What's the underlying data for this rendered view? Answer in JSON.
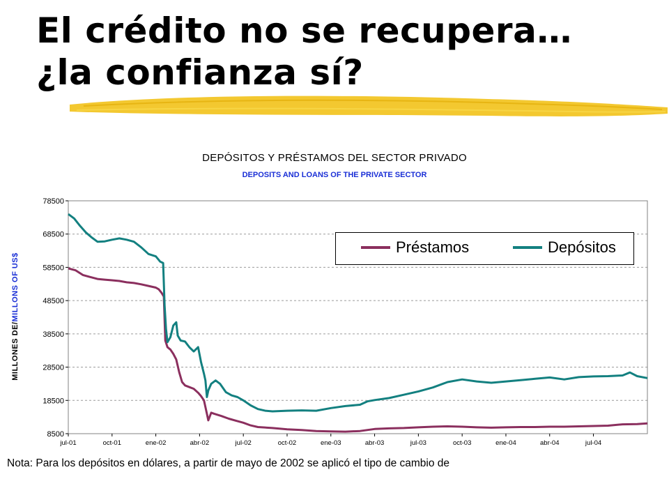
{
  "slide": {
    "title_line1": "El crédito no se recupera…",
    "title_line2": "¿la confianza sí?"
  },
  "note": "Nota: Para los depósitos en dólares, a partir de mayo de 2002 se aplicó el tipo de cambio de",
  "colors": {
    "prestamos": "#8b2f5e",
    "depositos": "#138080",
    "subtitle": "#1a2fd6",
    "stroke": "#f2c21a"
  },
  "chart_data": {
    "type": "line",
    "title": "DEPÓSITOS Y PRÉSTAMOS DEL SECTOR PRIVADO",
    "subtitle": "DEPOSITS AND LOANS OF THE PRIVATE SECTOR",
    "ylabel_part1": "MILLONES DE/",
    "ylabel_part2": "MILLONS OF US$",
    "ylim": [
      8500,
      78500
    ],
    "yticks": [
      8500,
      18500,
      28500,
      38500,
      48500,
      58500,
      68500,
      78500
    ],
    "ytick_labels": [
      "8500",
      "18500",
      "28500",
      "38500",
      "48500",
      "58500",
      "68500",
      "78500"
    ],
    "xticks": [
      "jul-01",
      "oct-01",
      "ene-02",
      "abr-02",
      "jul-02",
      "oct-02",
      "ene-03",
      "abr-03",
      "jul-03",
      "oct-03",
      "ene-04",
      "abr-04",
      "jul-04"
    ],
    "xrange_months": [
      0,
      39.7
    ],
    "grid": true,
    "legend_position": "top-right",
    "series": [
      {
        "name": "Préstamos",
        "color": "#8b2f5e",
        "points": [
          [
            0,
            58200
          ],
          [
            0.5,
            57600
          ],
          [
            1,
            56200
          ],
          [
            1.5,
            55600
          ],
          [
            2,
            55000
          ],
          [
            2.5,
            54800
          ],
          [
            3,
            54600
          ],
          [
            3.5,
            54400
          ],
          [
            4,
            54000
          ],
          [
            4.5,
            53800
          ],
          [
            5,
            53400
          ],
          [
            5.5,
            52900
          ],
          [
            6,
            52400
          ],
          [
            6.2,
            51900
          ],
          [
            6.4,
            50800
          ],
          [
            6.55,
            49700
          ],
          [
            6.65,
            36500
          ],
          [
            6.8,
            34500
          ],
          [
            7,
            33800
          ],
          [
            7.2,
            32500
          ],
          [
            7.4,
            30800
          ],
          [
            7.6,
            27000
          ],
          [
            7.8,
            24000
          ],
          [
            8,
            23000
          ],
          [
            8.3,
            22500
          ],
          [
            8.6,
            22000
          ],
          [
            8.9,
            20800
          ],
          [
            9.1,
            19800
          ],
          [
            9.3,
            18500
          ],
          [
            9.5,
            14500
          ],
          [
            9.6,
            12500
          ],
          [
            9.8,
            14800
          ],
          [
            10,
            14500
          ],
          [
            10.5,
            13800
          ],
          [
            11,
            13000
          ],
          [
            11.5,
            12400
          ],
          [
            12,
            11800
          ],
          [
            12.5,
            11000
          ],
          [
            13,
            10500
          ],
          [
            14,
            10200
          ],
          [
            15,
            9800
          ],
          [
            16,
            9600
          ],
          [
            17,
            9300
          ],
          [
            18,
            9200
          ],
          [
            19,
            9100
          ],
          [
            20,
            9300
          ],
          [
            21,
            9900
          ],
          [
            22,
            10100
          ],
          [
            23,
            10200
          ],
          [
            24,
            10400
          ],
          [
            25,
            10600
          ],
          [
            26,
            10700
          ],
          [
            27,
            10600
          ],
          [
            28,
            10400
          ],
          [
            29,
            10300
          ],
          [
            30,
            10400
          ],
          [
            31,
            10500
          ],
          [
            32,
            10500
          ],
          [
            33,
            10600
          ],
          [
            34,
            10600
          ],
          [
            35,
            10700
          ],
          [
            36,
            10800
          ],
          [
            37,
            10900
          ],
          [
            38,
            11300
          ],
          [
            39,
            11400
          ],
          [
            39.7,
            11600
          ]
        ]
      },
      {
        "name": "Depósitos",
        "color": "#138080",
        "points": [
          [
            0,
            74500
          ],
          [
            0.4,
            73200
          ],
          [
            0.8,
            71000
          ],
          [
            1.2,
            69000
          ],
          [
            1.6,
            67500
          ],
          [
            2,
            66200
          ],
          [
            2.5,
            66300
          ],
          [
            3,
            66800
          ],
          [
            3.5,
            67200
          ],
          [
            4,
            66800
          ],
          [
            4.5,
            66200
          ],
          [
            5,
            64500
          ],
          [
            5.5,
            62500
          ],
          [
            6,
            61800
          ],
          [
            6.3,
            60200
          ],
          [
            6.5,
            59800
          ],
          [
            6.6,
            47000
          ],
          [
            6.7,
            40000
          ],
          [
            6.8,
            36000
          ],
          [
            7,
            37500
          ],
          [
            7.2,
            41000
          ],
          [
            7.4,
            42000
          ],
          [
            7.5,
            38000
          ],
          [
            7.7,
            36500
          ],
          [
            8,
            36200
          ],
          [
            8.3,
            34500
          ],
          [
            8.6,
            33200
          ],
          [
            8.9,
            34500
          ],
          [
            9.1,
            30000
          ],
          [
            9.3,
            26500
          ],
          [
            9.4,
            24500
          ],
          [
            9.5,
            19500
          ],
          [
            9.6,
            21500
          ],
          [
            9.8,
            23500
          ],
          [
            10.1,
            24500
          ],
          [
            10.4,
            23500
          ],
          [
            10.8,
            21000
          ],
          [
            11.2,
            20000
          ],
          [
            11.6,
            19500
          ],
          [
            12,
            18500
          ],
          [
            12.5,
            17000
          ],
          [
            13,
            15900
          ],
          [
            13.5,
            15400
          ],
          [
            14,
            15200
          ],
          [
            15,
            15400
          ],
          [
            16,
            15500
          ],
          [
            17,
            15400
          ],
          [
            18,
            16200
          ],
          [
            19,
            16800
          ],
          [
            20,
            17200
          ],
          [
            20.5,
            18200
          ],
          [
            21,
            18600
          ],
          [
            22,
            19200
          ],
          [
            23,
            20200
          ],
          [
            24,
            21200
          ],
          [
            25,
            22400
          ],
          [
            26,
            24000
          ],
          [
            27,
            24800
          ],
          [
            28,
            24200
          ],
          [
            29,
            23800
          ],
          [
            30,
            24200
          ],
          [
            31,
            24600
          ],
          [
            32,
            25000
          ],
          [
            33,
            25400
          ],
          [
            34,
            24800
          ],
          [
            35,
            25500
          ],
          [
            36,
            25700
          ],
          [
            37,
            25800
          ],
          [
            38,
            26000
          ],
          [
            38.5,
            26900
          ],
          [
            39,
            25800
          ],
          [
            39.7,
            25200
          ]
        ]
      }
    ]
  }
}
